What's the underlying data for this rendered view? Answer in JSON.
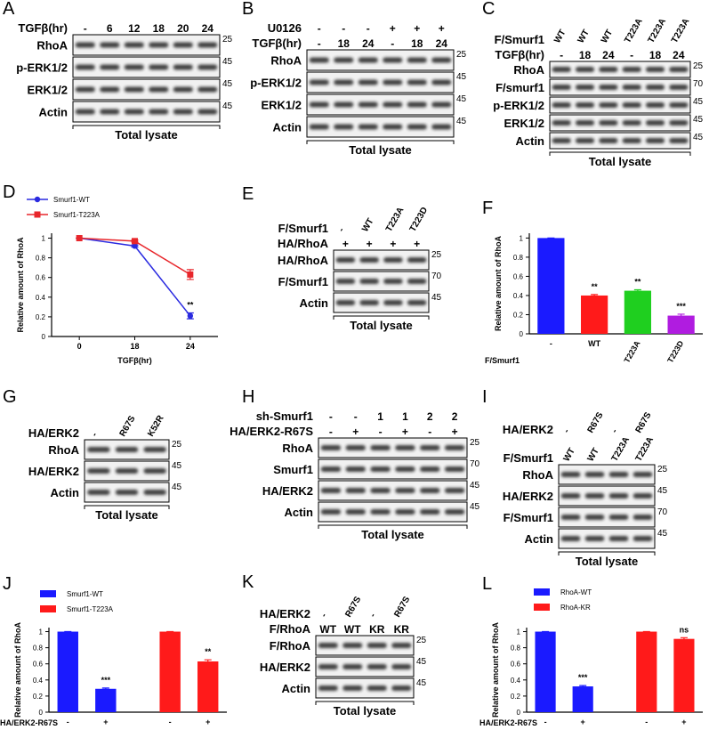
{
  "blots": [
    {
      "letter": "A",
      "headers": [
        {
          "label": "TGFβ(hr)",
          "lanes": [
            "-",
            "6",
            "12",
            "18",
            "20",
            "24"
          ]
        }
      ],
      "rows": [
        {
          "label": "RhoA",
          "mw": "25"
        },
        {
          "label": "p-ERK1/2",
          "mw": "45"
        },
        {
          "label": "ERK1/2",
          "mw": "45"
        },
        {
          "label": "Actin",
          "mw": "45"
        }
      ],
      "footer": "Total lysate"
    },
    {
      "letter": "B",
      "headers": [
        {
          "label": "U0126",
          "lanes": [
            "-",
            "-",
            "-",
            "+",
            "+",
            "+"
          ]
        },
        {
          "label": "TGFβ(hr)",
          "lanes": [
            "-",
            "18",
            "24",
            "-",
            "18",
            "24"
          ]
        }
      ],
      "rows": [
        {
          "label": "RhoA",
          "mw": "25"
        },
        {
          "label": "p-ERK1/2",
          "mw": "45"
        },
        {
          "label": "ERK1/2",
          "mw": "45"
        },
        {
          "label": "Actin",
          "mw": "45"
        }
      ],
      "footer": "Total lysate"
    },
    {
      "letter": "C",
      "headers": [
        {
          "label": "F/Smurf1",
          "lanes": [
            "WT",
            "WT",
            "WT",
            "T223A",
            "T223A",
            "T223A"
          ]
        },
        {
          "label": "TGFβ(hr)",
          "lanes": [
            "-",
            "18",
            "24",
            "-",
            "18",
            "24"
          ]
        }
      ],
      "rows": [
        {
          "label": "RhoA",
          "mw": "25"
        },
        {
          "label": "F/smurf1",
          "mw": "70"
        },
        {
          "label": "p-ERK1/2",
          "mw": "45"
        },
        {
          "label": "ERK1/2",
          "mw": "45"
        },
        {
          "label": "Actin",
          "mw": "45"
        }
      ],
      "footer": "Total lysate"
    },
    {
      "letter": "E",
      "headers": [
        {
          "label": "F/Smurf1",
          "lanes": [
            "-",
            "WT",
            "T223A",
            "T223D"
          ]
        },
        {
          "label": "HA/RhoA",
          "lanes": [
            "+",
            "+",
            "+",
            "+"
          ]
        }
      ],
      "rows": [
        {
          "label": "HA/RhoA",
          "mw": "25"
        },
        {
          "label": "F/Smurf1",
          "mw": "70"
        },
        {
          "label": "Actin",
          "mw": "45"
        }
      ],
      "footer": "Total lysate"
    },
    {
      "letter": "G",
      "headers": [
        {
          "label": "HA/ERK2",
          "lanes": [
            "-",
            "R67S",
            "K52R"
          ]
        }
      ],
      "rows": [
        {
          "label": "RhoA",
          "mw": "25"
        },
        {
          "label": "HA/ERK2",
          "mw": "45"
        },
        {
          "label": "Actin",
          "mw": "45"
        }
      ],
      "footer": "Total lysate"
    },
    {
      "letter": "H",
      "headers": [
        {
          "label": "sh-Smurf1",
          "lanes": [
            "-",
            "-",
            "1",
            "1",
            "2",
            "2"
          ]
        },
        {
          "label": "HA/ERK2-R67S",
          "lanes": [
            "-",
            "+",
            "-",
            "+",
            "-",
            "+"
          ]
        }
      ],
      "rows": [
        {
          "label": "RhoA",
          "mw": "25"
        },
        {
          "label": "Smurf1",
          "mw": "70"
        },
        {
          "label": "HA/ERK2",
          "mw": "45"
        },
        {
          "label": "Actin",
          "mw": "45"
        }
      ],
      "footer": "Total lysate"
    },
    {
      "letter": "I",
      "headers": [
        {
          "label": "HA/ERK2",
          "lanes": [
            "-",
            "R67S",
            "-",
            "R67S"
          ]
        },
        {
          "label": "F/Smurf1",
          "lanes": [
            "WT",
            "WT",
            "T223A",
            "T223A"
          ]
        }
      ],
      "rows": [
        {
          "label": "RhoA",
          "mw": "25"
        },
        {
          "label": "HA/ERK2",
          "mw": "45"
        },
        {
          "label": "F/Smurf1",
          "mw": "70"
        },
        {
          "label": "Actin",
          "mw": "45"
        }
      ],
      "footer": "Total lysate"
    },
    {
      "letter": "K",
      "headers": [
        {
          "label": "HA/ERK2",
          "lanes": [
            "-",
            "R67S",
            "-",
            "R67S"
          ]
        },
        {
          "label": "F/RhoA",
          "lanes": [
            "WT",
            "WT",
            "KR",
            "KR"
          ]
        }
      ],
      "rows": [
        {
          "label": "F/RhoA",
          "mw": "25"
        },
        {
          "label": "HA/ERK2",
          "mw": "45"
        },
        {
          "label": "Actin",
          "mw": "45"
        }
      ],
      "footer": "Total lysate"
    }
  ],
  "chart_data": [
    {
      "type": "line",
      "letter": "D",
      "ylabel": "Relative amount of RhoA",
      "xlabel": "TGFβ(hr)",
      "categories": [
        "0",
        "18",
        "24"
      ],
      "series": [
        {
          "name": "Smurf1-WT",
          "color": "#2a2ae0",
          "values": [
            1,
            0.92,
            0.21
          ],
          "errors": [
            0,
            0.01,
            0.03
          ]
        },
        {
          "name": "Smurf1-T223A",
          "color": "#e8262b",
          "values": [
            1,
            0.97,
            0.63
          ],
          "errors": [
            0,
            0.01,
            0.05
          ]
        }
      ],
      "annotations": [
        {
          "series": 0,
          "index": 2,
          "text": "**"
        }
      ],
      "ylim": [
        0,
        1.05
      ],
      "yticks": [
        0,
        0.2,
        0.4,
        0.6,
        0.8,
        1
      ],
      "legend": "top-left"
    },
    {
      "type": "bar",
      "letter": "F",
      "ylabel": "Relative amount of RhoA",
      "xlabel": "F/Smurf1",
      "categories": [
        "-",
        "WT",
        "T223A",
        "T223D"
      ],
      "values": [
        1,
        0.4,
        0.45,
        0.19
      ],
      "errors": [
        0,
        0.01,
        0.01,
        0.015
      ],
      "colors": [
        "#1a1aff",
        "#ff1a1a",
        "#1fcf1f",
        "#b01ce0"
      ],
      "annotations": [
        {
          "index": 1,
          "text": "**"
        },
        {
          "index": 2,
          "text": "**"
        },
        {
          "index": 3,
          "text": "***"
        }
      ],
      "ylim": [
        0,
        1.05
      ],
      "yticks": [
        0,
        0.2,
        0.4,
        0.6,
        0.8,
        1
      ]
    },
    {
      "type": "grouped-bar",
      "letter": "J",
      "ylabel": "Relative amount of RhoA",
      "xlabel": "HA/ERK2-R67S",
      "categories": [
        "-",
        "+",
        "-",
        "+"
      ],
      "series": [
        {
          "name": "Smurf1-WT",
          "color": "#1a1aff",
          "values": [
            1,
            0.29,
            null,
            null
          ],
          "errors": [
            0,
            0.01,
            null,
            null
          ]
        },
        {
          "name": "Smurf1-T223A",
          "color": "#ff1a1a",
          "values": [
            null,
            null,
            1,
            0.63
          ],
          "errors": [
            null,
            null,
            0,
            0.02
          ]
        }
      ],
      "annotations": [
        {
          "series": 0,
          "index": 1,
          "text": "***"
        },
        {
          "series": 1,
          "index": 3,
          "text": "**"
        }
      ],
      "ylim": [
        0,
        1.05
      ],
      "yticks": [
        0,
        0.2,
        0.4,
        0.6,
        0.8,
        1
      ],
      "legend": "top-left"
    },
    {
      "type": "grouped-bar",
      "letter": "L",
      "ylabel": "Relative amount of RhoA",
      "xlabel": "HA/ERK2-R67S",
      "categories": [
        "-",
        "+",
        "-",
        "+"
      ],
      "series": [
        {
          "name": "RhoA-WT",
          "color": "#1a1aff",
          "values": [
            1,
            0.32,
            null,
            null
          ],
          "errors": [
            0,
            0.01,
            null,
            null
          ]
        },
        {
          "name": "RhoA-KR",
          "color": "#ff1a1a",
          "values": [
            null,
            null,
            1,
            0.91
          ],
          "errors": [
            null,
            null,
            0,
            0.015
          ]
        }
      ],
      "annotations": [
        {
          "series": 0,
          "index": 1,
          "text": "***"
        },
        {
          "series": 1,
          "index": 3,
          "text": "ns"
        }
      ],
      "ylim": [
        0,
        1.05
      ],
      "yticks": [
        0,
        0.2,
        0.4,
        0.6,
        0.8,
        1
      ],
      "legend": "top-left"
    }
  ]
}
